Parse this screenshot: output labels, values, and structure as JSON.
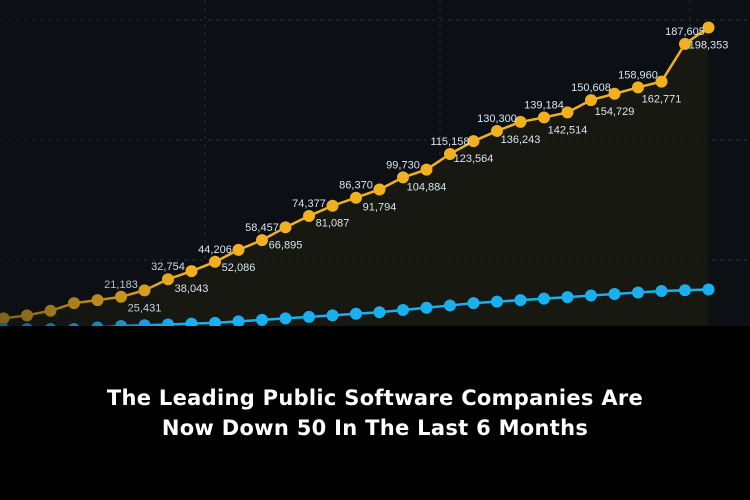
{
  "caption": {
    "title_line1": "The Leading Public Software Companies Are",
    "title_line2": "Now Down 50 In The Last 6 Months"
  },
  "colors": {
    "background": "#0c1014",
    "orange_series": "#f0b020",
    "blue_series": "#1ab0f0",
    "caption_background": "#000000",
    "caption_text": "#ffffff"
  },
  "chart_data": {
    "type": "line",
    "grid": true,
    "title": "",
    "xlabel": "",
    "ylabel": "",
    "ylim": [
      0,
      210000
    ],
    "series": [
      {
        "color": "#f0b020",
        "values": [
          4000,
          7000,
          9000,
          12000,
          17000,
          19000,
          21183,
          25431,
          32754,
          38043,
          44206,
          52086,
          58457,
          66895,
          74377,
          81087,
          86370,
          91794,
          99730,
          104884,
          115158,
          123564,
          130300,
          136243,
          139184,
          142514,
          150608,
          154729,
          158960,
          162771,
          187605,
          198353
        ],
        "labels": [
          "",
          "",
          "",
          "",
          "",
          "",
          "21,183",
          "25,431",
          "32,754",
          "38,043",
          "44,206",
          "52,086",
          "58,457",
          "66,895",
          "74,377",
          "81,087",
          "86,370",
          "91,794",
          "99,730",
          "104,884",
          "115,158",
          "123,564",
          "130,300",
          "136,243",
          "139,184",
          "142,514",
          "150,608",
          "154,729",
          "158,960",
          "162,771",
          "187,605",
          "198,353"
        ]
      },
      {
        "color": "#1ab0f0",
        "values": [
          0,
          0,
          0,
          0,
          0,
          1000,
          2000,
          2500,
          3000,
          3500,
          4000,
          5000,
          6000,
          7000,
          8000,
          9000,
          10000,
          11000,
          12500,
          14000,
          15500,
          17000,
          18000,
          19000,
          20000,
          21000,
          22000,
          23000,
          24000,
          25000,
          25500,
          26000
        ]
      }
    ]
  }
}
